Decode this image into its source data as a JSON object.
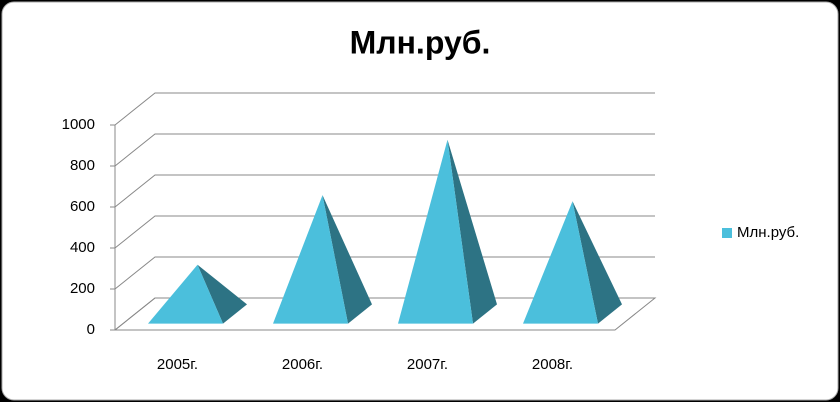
{
  "chart_data": {
    "type": "pyramid3d",
    "title": "Млн.руб.",
    "categories": [
      "2005г.",
      "2006г.",
      "2007г.",
      "2008г."
    ],
    "series": [
      {
        "name": "Млн.руб.",
        "color": "#4bbfdc",
        "values": [
          240,
          580,
          850,
          550
        ]
      }
    ],
    "ylim": [
      0,
      1000
    ],
    "yticks": [
      0,
      200,
      400,
      600,
      800,
      1000
    ],
    "grid": true,
    "legend": "right"
  }
}
